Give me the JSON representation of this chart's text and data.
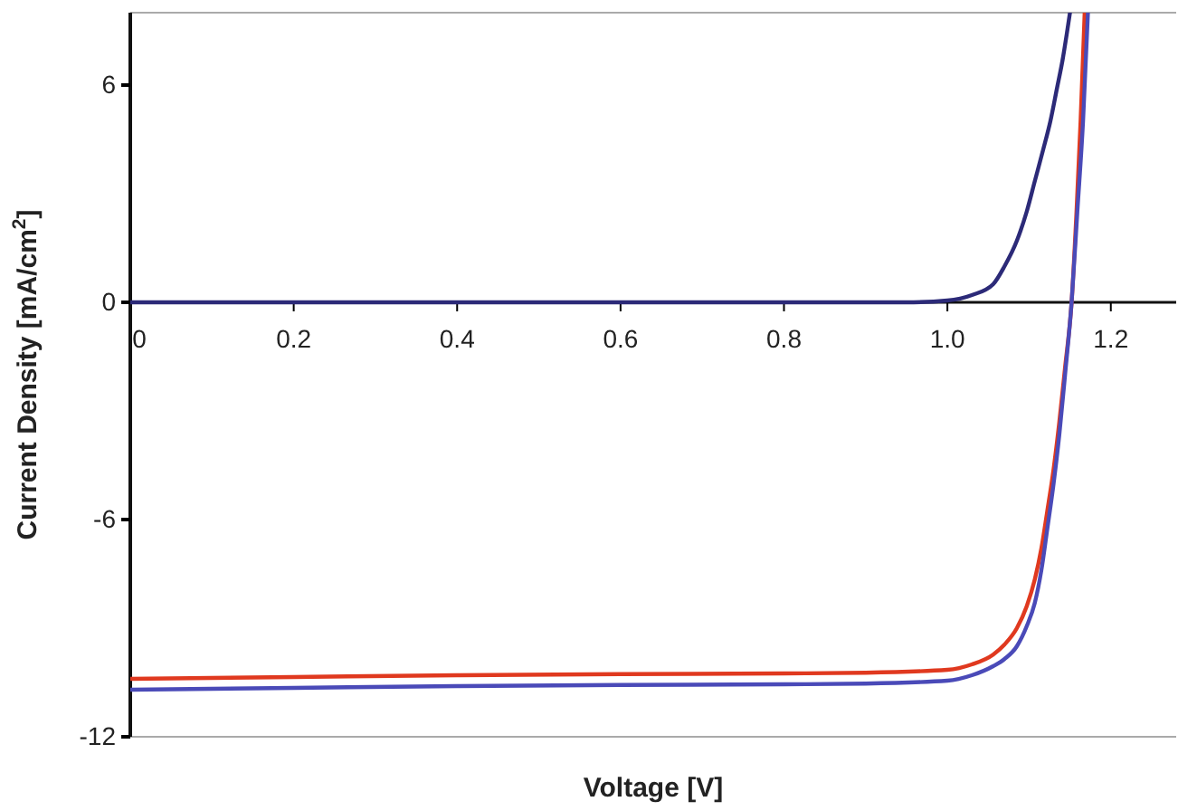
{
  "chart_data": {
    "type": "line",
    "xlabel": "Voltage [V]",
    "ylabel": "Current Density [mA/cm$^{2}$]",
    "xlim": [
      0,
      1.28
    ],
    "ylim": [
      -12,
      8
    ],
    "xticks": [
      0,
      0.2,
      0.4,
      0.6,
      0.8,
      {
        "value": 1.0,
        "label": "1.0"
      },
      1.2
    ],
    "yticks": [
      -12,
      -6,
      0,
      6
    ],
    "grid": false,
    "marker": "none",
    "line_style": "solid",
    "series": [
      {
        "color": "#e0391f",
        "x": [
          0,
          0.2,
          0.4,
          0.6,
          0.8,
          0.9,
          1.0,
          1.03,
          1.056,
          1.07,
          1.085,
          1.097,
          1.107,
          1.115,
          1.122,
          1.13,
          1.137,
          1.144,
          1.152,
          1.158,
          1.163,
          1.168
        ],
        "values": [
          -10.4,
          -10.35,
          -10.3,
          -10.27,
          -10.25,
          -10.23,
          -10.15,
          -10.0,
          -9.73,
          -9.45,
          -9.0,
          -8.4,
          -7.65,
          -6.8,
          -5.8,
          -4.6,
          -3.3,
          -1.8,
          0,
          2.5,
          5.0,
          8.0
        ]
      },
      {
        "color": "#4a4ab8",
        "x": [
          0,
          0.2,
          0.4,
          0.6,
          0.8,
          0.9,
          1.0,
          1.03,
          1.056,
          1.07,
          1.085,
          1.097,
          1.107,
          1.115,
          1.122,
          1.13,
          1.137,
          1.144,
          1.152,
          1.159,
          1.166,
          1.172
        ],
        "values": [
          -10.7,
          -10.65,
          -10.6,
          -10.57,
          -10.55,
          -10.53,
          -10.45,
          -10.3,
          -10.05,
          -9.85,
          -9.5,
          -8.95,
          -8.3,
          -7.4,
          -6.3,
          -5.0,
          -3.65,
          -2.0,
          0,
          2.5,
          5.0,
          8.0
        ]
      },
      {
        "color": "#2c2a78",
        "x": [
          0,
          0.2,
          0.4,
          0.6,
          0.8,
          0.9,
          0.95,
          1.0,
          1.03,
          1.056,
          1.07,
          1.085,
          1.097,
          1.107,
          1.117,
          1.126,
          1.134,
          1.141,
          1.146,
          1.15
        ],
        "values": [
          0,
          0,
          0,
          0,
          0,
          0,
          0,
          0.05,
          0.2,
          0.5,
          1.0,
          1.7,
          2.5,
          3.35,
          4.2,
          5.0,
          5.9,
          6.7,
          7.4,
          8.0
        ]
      }
    ]
  }
}
